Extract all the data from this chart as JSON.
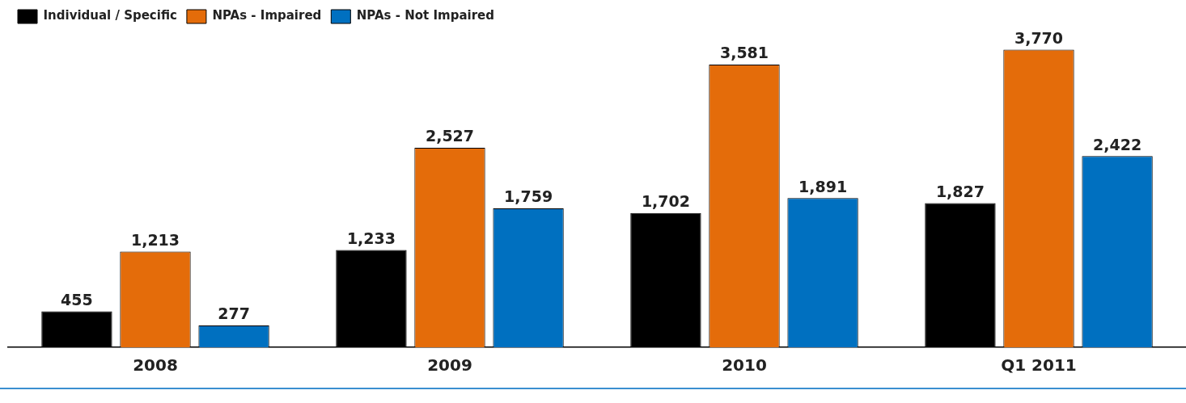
{
  "chart_data": {
    "type": "bar",
    "categories": [
      "2008",
      "2009",
      "2010",
      "Q1 2011"
    ],
    "series": [
      {
        "name": "Individual / Specific",
        "color": "#000000",
        "values": [
          455,
          1233,
          1702,
          1827
        ],
        "value_labels": [
          "455",
          "1,233",
          "1,702",
          "1,827"
        ]
      },
      {
        "name": "NPAs - Impaired",
        "color": "#e46c0a",
        "values": [
          1213,
          2527,
          3581,
          3770
        ],
        "value_labels": [
          "1,213",
          "2,527",
          "3,581",
          "3,770"
        ]
      },
      {
        "name": "NPAs - Not Impaired",
        "color": "#0070c0",
        "values": [
          277,
          1759,
          1891,
          2422
        ],
        "value_labels": [
          "277",
          "1,759",
          "1,891",
          "2,422"
        ]
      }
    ],
    "legend": "top left",
    "grid": false
  }
}
